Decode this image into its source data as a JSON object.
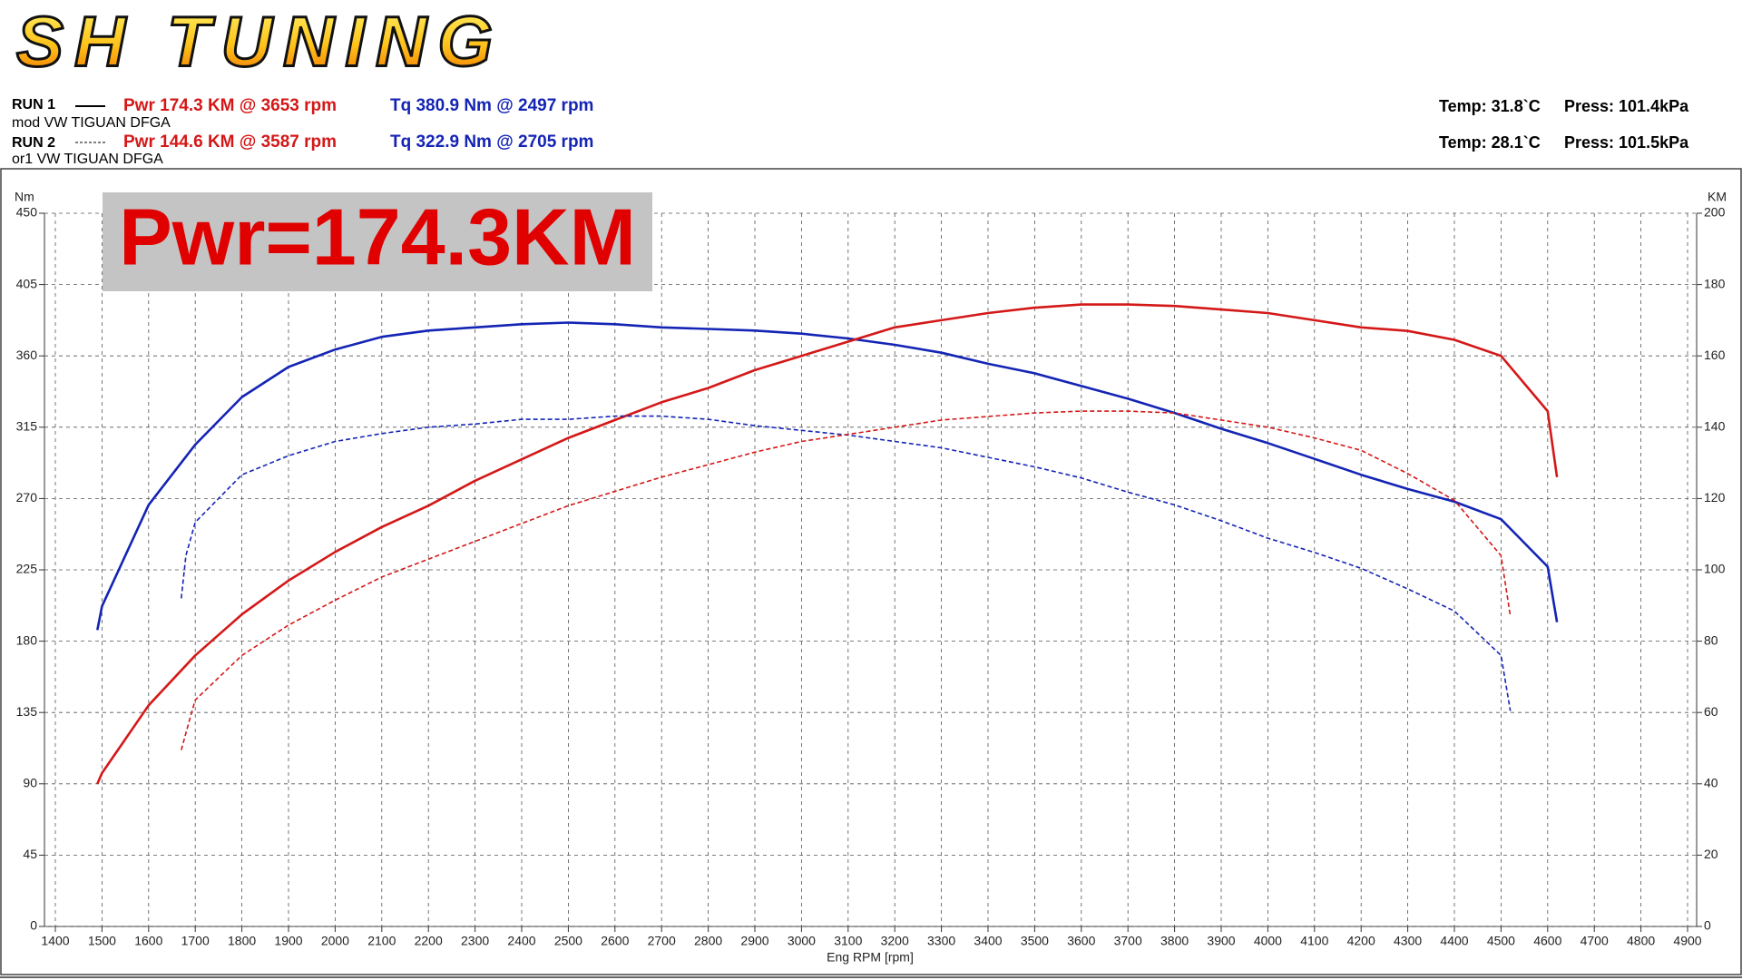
{
  "chart_data": {
    "type": "line",
    "logo": "SH TUNING",
    "highlight": "Pwr=174.3KM",
    "runs": [
      {
        "label": "RUN 1",
        "vehicle": "mod VW TIGUAN DFGA",
        "power_text": "Pwr  174.3 KM @ 3653 rpm",
        "torque_text": "Tq 380.9 Nm @ 2497 rpm",
        "temp": "Temp: 31.8`C",
        "press": "Press: 101.4kPa"
      },
      {
        "label": "RUN 2",
        "vehicle": "or1 VW TIGUAN DFGA",
        "power_text": "Pwr  144.6 KM @ 3587 rpm",
        "torque_text": "Tq 322.9 Nm @ 2705 rpm",
        "temp": "Temp: 28.1`C",
        "press": "Press: 101.5kPa"
      }
    ],
    "xlabel": "Eng RPM [rpm]",
    "ylabel": "Nm",
    "y2label": "KM",
    "xlim": [
      1400,
      4900
    ],
    "xticks": [
      1400,
      1500,
      1600,
      1700,
      1800,
      1900,
      2000,
      2100,
      2200,
      2300,
      2400,
      2500,
      2600,
      2700,
      2800,
      2900,
      3000,
      3100,
      3200,
      3300,
      3400,
      3500,
      3600,
      3700,
      3800,
      3900,
      4000,
      4100,
      4200,
      4300,
      4400,
      4500,
      4600,
      4700,
      4800,
      4900
    ],
    "ylim": [
      0,
      450
    ],
    "yticks": [
      0,
      45,
      90,
      135,
      180,
      225,
      270,
      315,
      360,
      405,
      450
    ],
    "y2lim": [
      0,
      200
    ],
    "y2ticks": [
      0,
      20,
      40,
      60,
      80,
      100,
      120,
      140,
      160,
      180,
      200
    ],
    "grid": true,
    "series": [
      {
        "color": "#1424b4",
        "dash": false,
        "axis": "y",
        "x": [
          1490,
          1500,
          1600,
          1700,
          1800,
          1900,
          2000,
          2100,
          2200,
          2300,
          2400,
          2500,
          2600,
          2700,
          2800,
          2900,
          3000,
          3100,
          3200,
          3300,
          3400,
          3500,
          3600,
          3700,
          3800,
          3900,
          4000,
          4100,
          4200,
          4300,
          4400,
          4500,
          4600,
          4620
        ],
        "values": [
          187,
          202,
          266,
          304,
          334,
          353,
          364,
          372,
          376,
          378,
          380,
          381,
          380,
          378,
          377,
          376,
          374,
          371,
          367,
          362,
          355,
          349,
          341,
          333,
          324,
          314,
          305,
          295,
          285,
          276,
          268,
          257,
          227,
          192
        ]
      },
      {
        "color": "#d41818",
        "dash": false,
        "axis": "y2",
        "x": [
          1490,
          1500,
          1600,
          1700,
          1800,
          1900,
          2000,
          2100,
          2200,
          2300,
          2400,
          2500,
          2600,
          2700,
          2800,
          2900,
          3000,
          3100,
          3200,
          3300,
          3400,
          3500,
          3600,
          3700,
          3800,
          3900,
          4000,
          4100,
          4200,
          4300,
          4400,
          4500,
          4600,
          4620
        ],
        "values": [
          40,
          43,
          62,
          76,
          87.5,
          97,
          105,
          112,
          118,
          125,
          131,
          137,
          142,
          147,
          151,
          156,
          160,
          164,
          168,
          170,
          172,
          173.5,
          174.4,
          174.4,
          174,
          173,
          172,
          170,
          168,
          167,
          164.5,
          160,
          144.5,
          126
        ]
      },
      {
        "color": "#1424b4",
        "dash": true,
        "axis": "y",
        "x": [
          1670,
          1680,
          1700,
          1800,
          1900,
          2000,
          2100,
          2200,
          2300,
          2400,
          2500,
          2600,
          2700,
          2800,
          2900,
          3000,
          3100,
          3200,
          3300,
          3400,
          3500,
          3600,
          3700,
          3800,
          3900,
          4000,
          4100,
          4200,
          4300,
          4400,
          4500,
          4520
        ],
        "values": [
          207,
          234,
          255,
          285,
          297,
          306,
          311,
          315,
          317,
          320,
          320,
          322,
          322,
          320,
          316,
          313,
          310,
          306,
          302,
          296,
          290,
          283,
          274,
          266,
          256,
          245,
          236,
          226,
          213,
          199,
          171,
          136
        ]
      },
      {
        "color": "#d41818",
        "dash": true,
        "axis": "y2",
        "x": [
          1670,
          1690,
          1700,
          1800,
          1900,
          2000,
          2100,
          2200,
          2300,
          2400,
          2500,
          2600,
          2700,
          2800,
          2900,
          3000,
          3100,
          3200,
          3300,
          3400,
          3500,
          3600,
          3700,
          3800,
          3900,
          4000,
          4100,
          4200,
          4300,
          4400,
          4500,
          4520
        ],
        "values": [
          49.5,
          59,
          63.5,
          76,
          84.5,
          91.5,
          98,
          103,
          108,
          113,
          118,
          122,
          126,
          129.5,
          133,
          136,
          138,
          140,
          142,
          143,
          144,
          144.5,
          144.5,
          144,
          142,
          140,
          137,
          133.5,
          127,
          119.5,
          104,
          87
        ]
      }
    ]
  }
}
